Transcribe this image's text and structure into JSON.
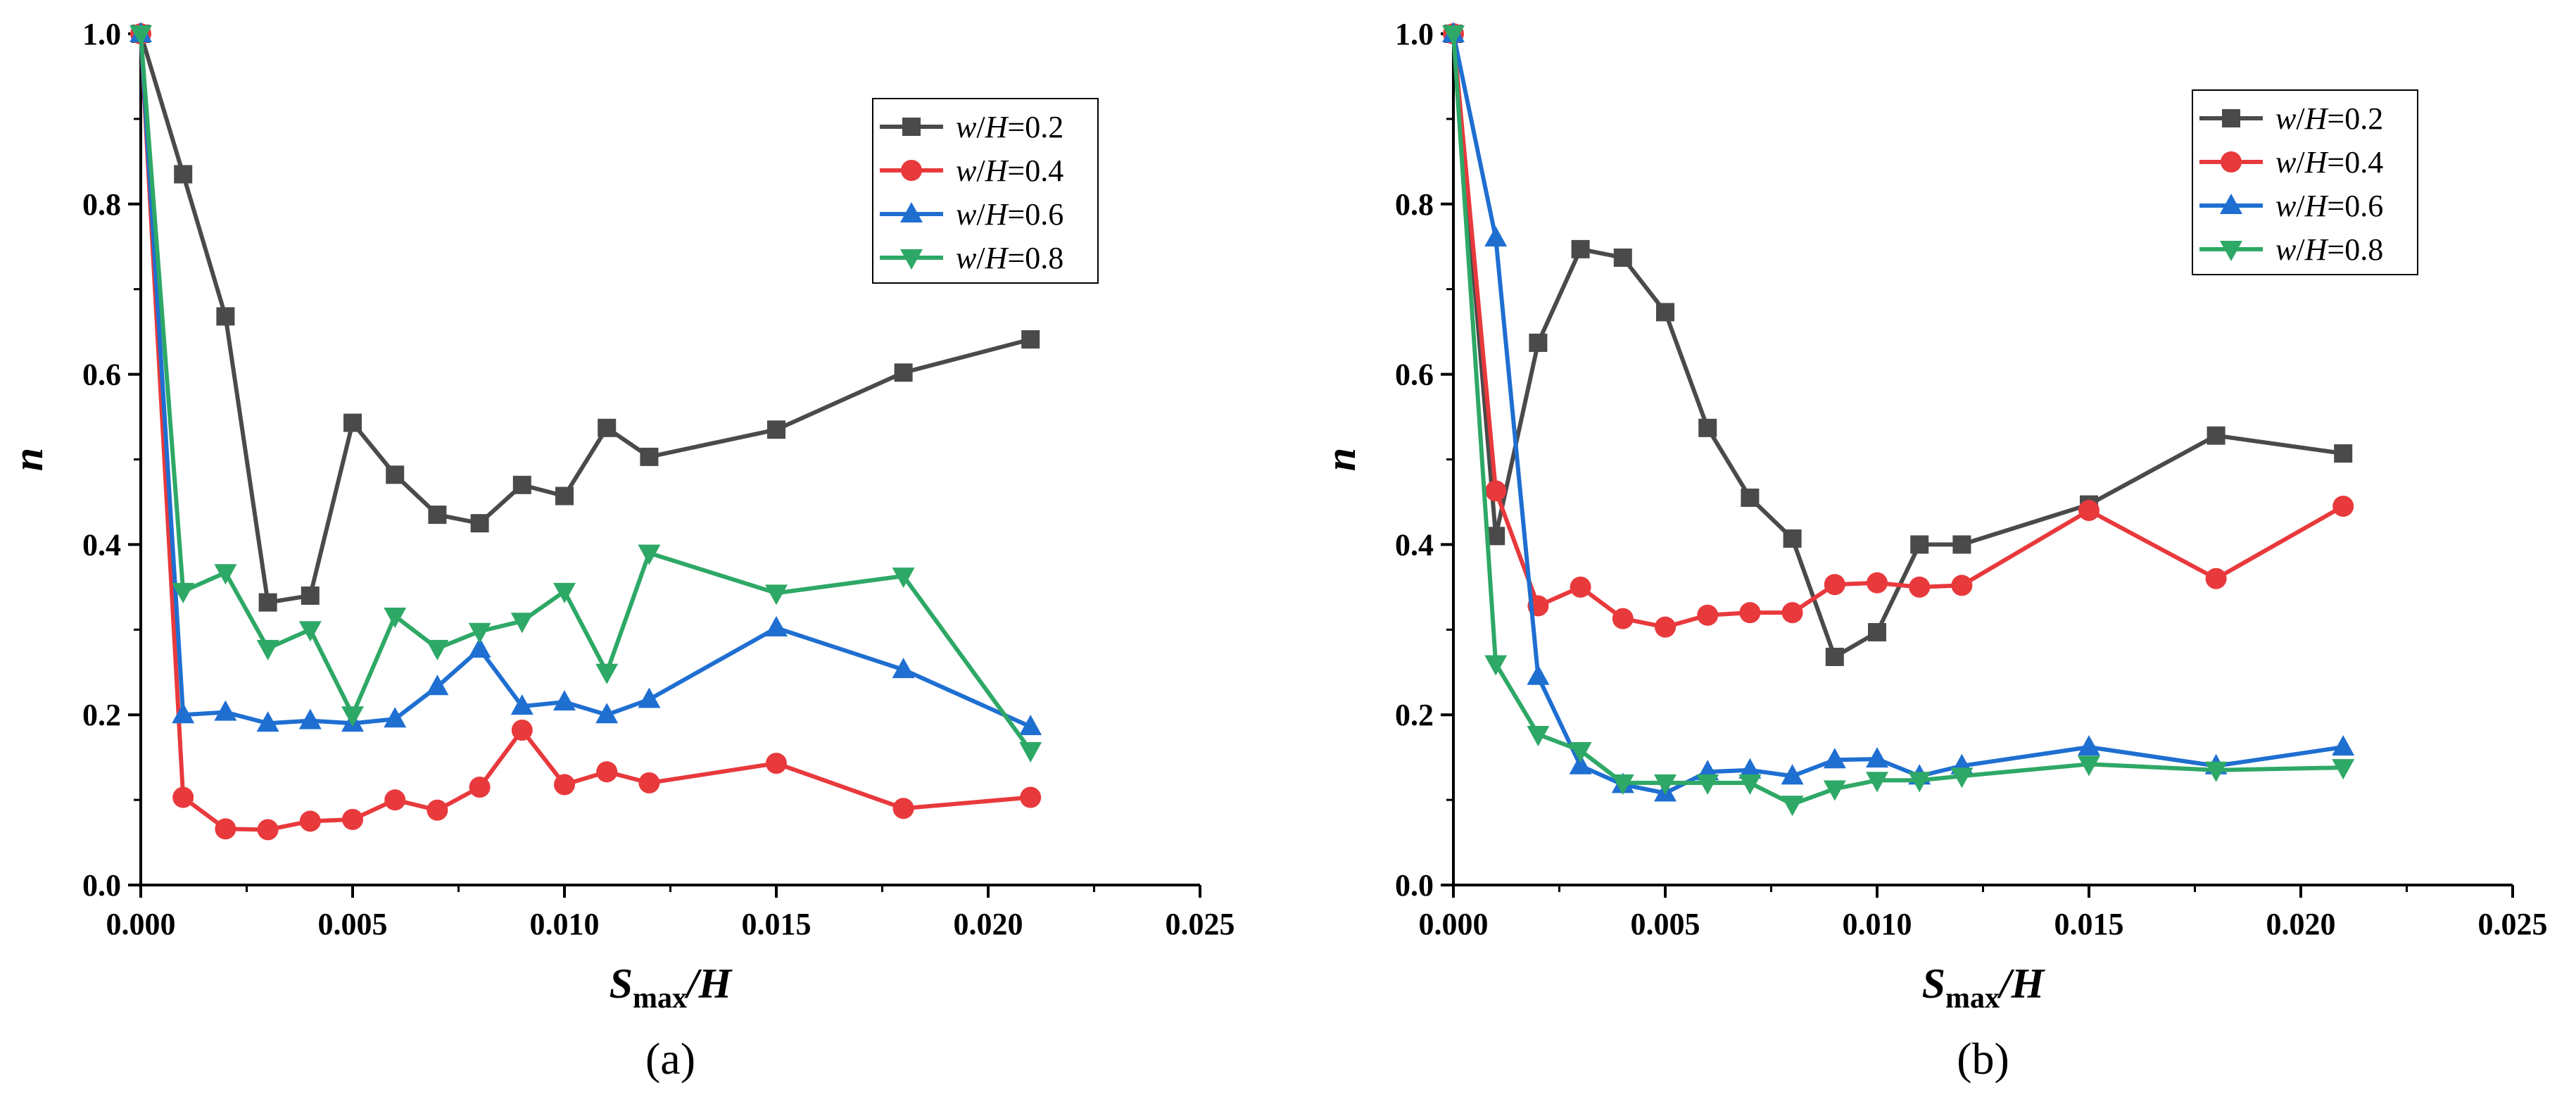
{
  "chart_data": [
    {
      "type": "line",
      "panel_label": "(a)",
      "xlabel": {
        "main": "S",
        "sub": "max",
        "tail": "/H"
      },
      "ylabel": "n",
      "xlim": [
        0,
        0.025
      ],
      "ylim": [
        0,
        1.0
      ],
      "x_ticks": [
        "0.000",
        "0.005",
        "0.010",
        "0.015",
        "0.020",
        "0.025"
      ],
      "y_ticks": [
        "0.0",
        "0.2",
        "0.4",
        "0.6",
        "0.8",
        "1.0"
      ],
      "grid": false,
      "legend_position": "top-right",
      "series": [
        {
          "name": "w/H=0.2",
          "name_parts": [
            "w",
            "/",
            "H",
            "=0.2"
          ],
          "color": "#4a4a4a",
          "marker": "square",
          "x": [
            0,
            0.001,
            0.002,
            0.003,
            0.004,
            0.005,
            0.006,
            0.007,
            0.008,
            0.009,
            0.01,
            0.011,
            0.012,
            0.015,
            0.018,
            0.021
          ],
          "y": [
            1.0,
            0.835,
            0.668,
            0.332,
            0.34,
            0.543,
            0.482,
            0.435,
            0.425,
            0.47,
            0.457,
            0.537,
            0.503,
            0.535,
            0.602,
            0.641
          ]
        },
        {
          "name": "w/H=0.4",
          "name_parts": [
            "w",
            "/",
            "H",
            "=0.4"
          ],
          "color": "#e8393c",
          "marker": "circle",
          "x": [
            0,
            0.001,
            0.002,
            0.003,
            0.004,
            0.005,
            0.006,
            0.007,
            0.008,
            0.009,
            0.01,
            0.011,
            0.012,
            0.015,
            0.018,
            0.021
          ],
          "y": [
            1.0,
            0.103,
            0.066,
            0.065,
            0.075,
            0.077,
            0.1,
            0.088,
            0.115,
            0.182,
            0.118,
            0.133,
            0.12,
            0.143,
            0.09,
            0.103
          ]
        },
        {
          "name": "w/H=0.6",
          "name_parts": [
            "w",
            "/",
            "H",
            "=0.6"
          ],
          "color": "#1f6fd1",
          "marker": "triangle-up",
          "x": [
            0,
            0.001,
            0.002,
            0.003,
            0.004,
            0.005,
            0.006,
            0.007,
            0.008,
            0.009,
            0.01,
            0.011,
            0.012,
            0.015,
            0.018,
            0.021
          ],
          "y": [
            1.0,
            0.2,
            0.203,
            0.19,
            0.193,
            0.19,
            0.195,
            0.233,
            0.277,
            0.21,
            0.215,
            0.2,
            0.218,
            0.302,
            0.253,
            0.186
          ]
        },
        {
          "name": "w/H=0.8",
          "name_parts": [
            "w",
            "/",
            "H",
            "=0.8"
          ],
          "color": "#2ea866",
          "marker": "triangle-down",
          "x": [
            0,
            0.001,
            0.002,
            0.003,
            0.004,
            0.005,
            0.006,
            0.007,
            0.008,
            0.009,
            0.01,
            0.011,
            0.012,
            0.015,
            0.018,
            0.021
          ],
          "y": [
            1.0,
            0.345,
            0.367,
            0.278,
            0.3,
            0.2,
            0.316,
            0.278,
            0.298,
            0.31,
            0.345,
            0.25,
            0.39,
            0.343,
            0.363,
            0.158
          ]
        }
      ]
    },
    {
      "type": "line",
      "panel_label": "(b)",
      "xlabel": {
        "main": "S",
        "sub": "max",
        "tail": "/H"
      },
      "ylabel": "n",
      "xlim": [
        0,
        0.025
      ],
      "ylim": [
        0,
        1.0
      ],
      "x_ticks": [
        "0.000",
        "0.005",
        "0.010",
        "0.015",
        "0.020",
        "0.025"
      ],
      "y_ticks": [
        "0.0",
        "0.2",
        "0.4",
        "0.6",
        "0.8",
        "1.0"
      ],
      "grid": false,
      "legend_position": "top-right",
      "series": [
        {
          "name": "w/H=0.2",
          "name_parts": [
            "w",
            "/",
            "H",
            "=0.2"
          ],
          "color": "#4a4a4a",
          "marker": "square",
          "x": [
            0,
            0.001,
            0.002,
            0.003,
            0.004,
            0.005,
            0.006,
            0.007,
            0.008,
            0.009,
            0.01,
            0.011,
            0.012,
            0.015,
            0.018,
            0.021
          ],
          "y": [
            1.0,
            0.41,
            0.637,
            0.747,
            0.737,
            0.673,
            0.537,
            0.455,
            0.407,
            0.268,
            0.297,
            0.4,
            0.4,
            0.447,
            0.528,
            0.507
          ]
        },
        {
          "name": "w/H=0.4",
          "name_parts": [
            "w",
            "/",
            "H",
            "=0.4"
          ],
          "color": "#e8393c",
          "marker": "circle",
          "x": [
            0,
            0.001,
            0.002,
            0.003,
            0.004,
            0.005,
            0.006,
            0.007,
            0.008,
            0.009,
            0.01,
            0.011,
            0.012,
            0.015,
            0.018,
            0.021
          ],
          "y": [
            1.0,
            0.463,
            0.328,
            0.35,
            0.313,
            0.303,
            0.317,
            0.32,
            0.32,
            0.353,
            0.355,
            0.35,
            0.352,
            0.44,
            0.36,
            0.445
          ]
        },
        {
          "name": "w/H=0.6",
          "name_parts": [
            "w",
            "/",
            "H",
            "=0.6"
          ],
          "color": "#1f6fd1",
          "marker": "triangle-up",
          "x": [
            0,
            0.001,
            0.002,
            0.003,
            0.004,
            0.005,
            0.006,
            0.007,
            0.008,
            0.009,
            0.01,
            0.011,
            0.012,
            0.015,
            0.018,
            0.021
          ],
          "y": [
            1.0,
            0.76,
            0.245,
            0.14,
            0.118,
            0.108,
            0.133,
            0.135,
            0.128,
            0.147,
            0.148,
            0.128,
            0.14,
            0.162,
            0.14,
            0.162
          ]
        },
        {
          "name": "w/H=0.8",
          "name_parts": [
            "w",
            "/",
            "H",
            "=0.8"
          ],
          "color": "#2ea866",
          "marker": "triangle-down",
          "x": [
            0,
            0.001,
            0.002,
            0.003,
            0.004,
            0.005,
            0.006,
            0.007,
            0.008,
            0.009,
            0.01,
            0.011,
            0.012,
            0.015,
            0.018,
            0.021
          ],
          "y": [
            1.0,
            0.26,
            0.177,
            0.158,
            0.12,
            0.12,
            0.12,
            0.12,
            0.095,
            0.113,
            0.123,
            0.123,
            0.128,
            0.142,
            0.135,
            0.138
          ]
        }
      ]
    }
  ]
}
